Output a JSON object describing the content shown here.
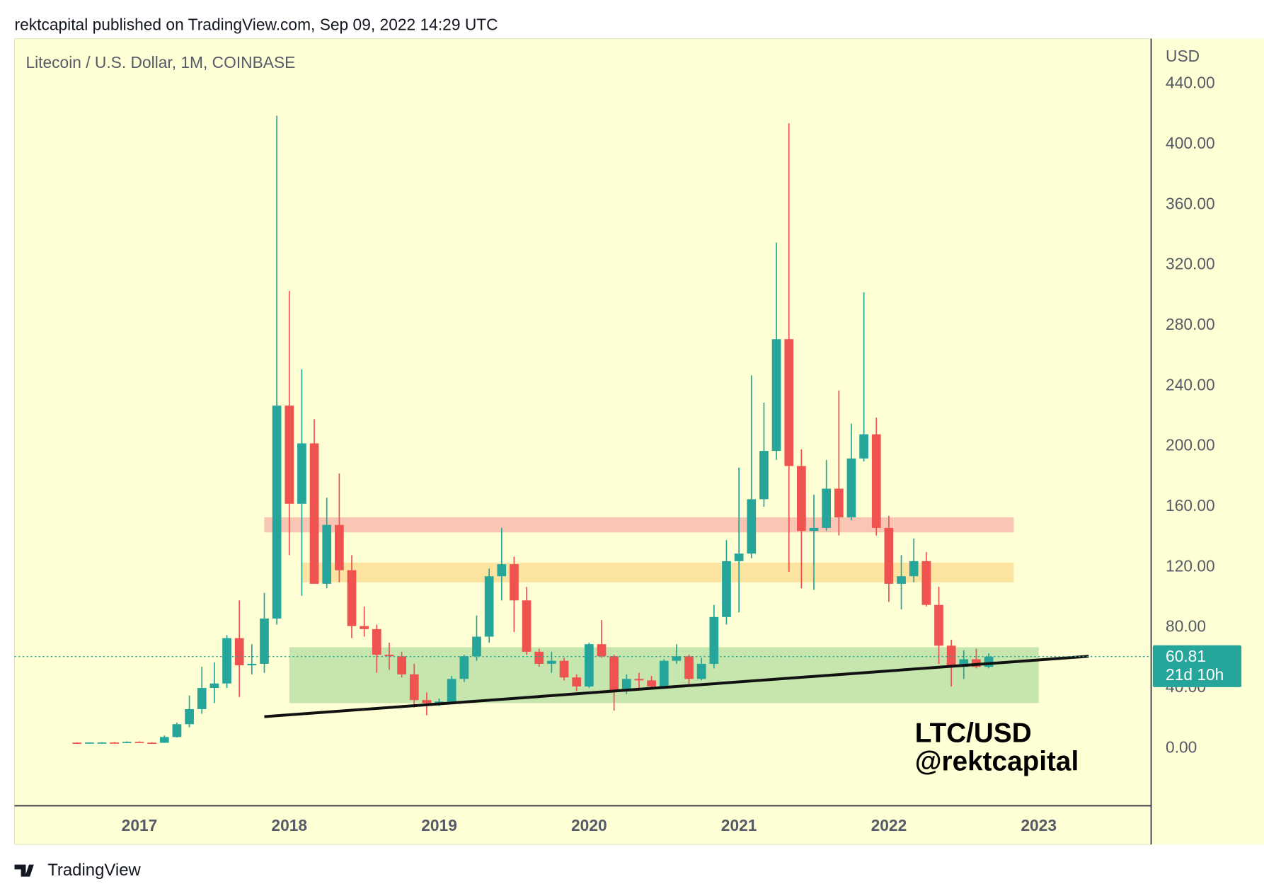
{
  "header": "rektcapital published on TradingView.com, Sep 09, 2022 14:29 UTC",
  "footer": "TradingView",
  "chart_data": {
    "type": "candlestick",
    "title": "Litecoin / U.S. Dollar, 1M, COINBASE",
    "y_axis_label": "USD",
    "countdown": "21d 10h",
    "up_color": "#26a69a",
    "down_color": "#ef5350",
    "grid": false,
    "x": [
      "2016-08",
      "2016-09",
      "2016-10",
      "2016-11",
      "2016-12",
      "2017-01",
      "2017-02",
      "2017-03",
      "2017-04",
      "2017-05",
      "2017-06",
      "2017-07",
      "2017-08",
      "2017-09",
      "2017-10",
      "2017-11",
      "2017-12",
      "2018-01",
      "2018-02",
      "2018-03",
      "2018-04",
      "2018-05",
      "2018-06",
      "2018-07",
      "2018-08",
      "2018-09",
      "2018-10",
      "2018-11",
      "2018-12",
      "2019-01",
      "2019-02",
      "2019-03",
      "2019-04",
      "2019-05",
      "2019-06",
      "2019-07",
      "2019-08",
      "2019-09",
      "2019-10",
      "2019-11",
      "2019-12",
      "2020-01",
      "2020-02",
      "2020-03",
      "2020-04",
      "2020-05",
      "2020-06",
      "2020-07",
      "2020-08",
      "2020-09",
      "2020-10",
      "2020-11",
      "2020-12",
      "2021-01",
      "2021-02",
      "2021-03",
      "2021-04",
      "2021-05",
      "2021-06",
      "2021-07",
      "2021-08",
      "2021-09",
      "2021-10",
      "2021-11",
      "2021-12",
      "2022-01",
      "2022-02",
      "2022-03",
      "2022-04",
      "2022-05",
      "2022-06",
      "2022-07",
      "2022-08",
      "2022-09"
    ],
    "open": [
      3.8,
      3.7,
      3.9,
      3.9,
      3.6,
      4.4,
      3.8,
      3.7,
      7.5,
      16,
      26,
      40,
      43,
      73,
      55,
      56,
      86,
      227,
      162,
      202,
      109,
      148,
      118,
      81,
      79,
      62,
      61,
      49,
      32,
      30,
      31,
      46,
      61,
      74,
      114,
      122,
      98,
      64,
      56,
      58,
      47,
      41,
      69,
      61,
      38,
      46,
      45,
      41,
      58,
      61,
      46,
      56,
      87,
      124,
      129,
      165,
      197,
      271,
      187,
      144,
      146,
      172,
      153,
      192,
      208,
      146,
      109,
      114,
      124,
      95,
      68,
      54,
      59,
      54
    ],
    "high": [
      4.0,
      4.0,
      4.1,
      4.2,
      4.6,
      4.6,
      4.1,
      8.5,
      17,
      35,
      54,
      57,
      75,
      98,
      69,
      103,
      419,
      303,
      251,
      218,
      166,
      182,
      128,
      94,
      82,
      70,
      64,
      56,
      37,
      33,
      48,
      62,
      88,
      119,
      146,
      127,
      107,
      66,
      64,
      60,
      49,
      70,
      85,
      62,
      49,
      50,
      48,
      59,
      69,
      62,
      60,
      95,
      138,
      186,
      247,
      229,
      335,
      414,
      198,
      168,
      191,
      237,
      215,
      302,
      219,
      154,
      128,
      139,
      130,
      107,
      72,
      65,
      66,
      63
    ],
    "low": [
      3.5,
      3.6,
      3.7,
      3.5,
      3.4,
      3.6,
      3.6,
      3.6,
      7.2,
      14,
      23,
      30,
      40,
      34,
      49,
      50,
      82,
      128,
      101,
      110,
      106,
      110,
      73,
      74,
      50,
      52,
      47,
      27,
      22,
      28,
      30,
      44,
      58,
      70,
      98,
      77,
      62,
      54,
      50,
      45,
      38,
      40,
      60,
      25,
      36,
      40,
      39,
      40,
      56,
      42,
      45,
      53,
      82,
      90,
      126,
      160,
      191,
      117,
      106,
      105,
      144,
      141,
      151,
      190,
      141,
      97,
      92,
      110,
      94,
      56,
      41,
      46,
      53,
      53
    ],
    "close": [
      3.7,
      3.9,
      3.9,
      3.6,
      4.4,
      3.8,
      3.7,
      7.5,
      16,
      26,
      40,
      43,
      73,
      55,
      56,
      86,
      227,
      162,
      202,
      109,
      148,
      118,
      81,
      79,
      62,
      61,
      49,
      32,
      30,
      31,
      46,
      61,
      74,
      114,
      122,
      98,
      64,
      56,
      58,
      47,
      41,
      69,
      61,
      38,
      46,
      45,
      41,
      58,
      61,
      46,
      56,
      87,
      124,
      129,
      165,
      197,
      271,
      187,
      144,
      146,
      172,
      153,
      192,
      208,
      146,
      109,
      114,
      124,
      95,
      68,
      54,
      59,
      54,
      60.81
    ],
    "xlim": [
      "2016-03",
      "2023-10"
    ],
    "xticks": [
      {
        "value": "2017-01",
        "label": "2017"
      },
      {
        "value": "2018-01",
        "label": "2018"
      },
      {
        "value": "2019-01",
        "label": "2019"
      },
      {
        "value": "2020-01",
        "label": "2020"
      },
      {
        "value": "2021-01",
        "label": "2021"
      },
      {
        "value": "2022-01",
        "label": "2022"
      },
      {
        "value": "2023-01",
        "label": "2023"
      }
    ],
    "ylim": [
      -38,
      470
    ],
    "yticks": [
      {
        "value": 0,
        "label": "0.00"
      },
      {
        "value": 40,
        "label": "40.00"
      },
      {
        "value": 80,
        "label": "80.00"
      },
      {
        "value": 120,
        "label": "120.00"
      },
      {
        "value": 160,
        "label": "160.00"
      },
      {
        "value": 200,
        "label": "200.00"
      },
      {
        "value": 240,
        "label": "240.00"
      },
      {
        "value": 280,
        "label": "280.00"
      },
      {
        "value": 320,
        "label": "320.00"
      },
      {
        "value": 360,
        "label": "360.00"
      },
      {
        "value": 400,
        "label": "400.00"
      },
      {
        "value": 440,
        "label": "440.00"
      }
    ],
    "zones": [
      {
        "from": 143,
        "to": 153,
        "start": "2017-11",
        "end": "2022-11",
        "color": "#f9c6b3"
      },
      {
        "from": 110,
        "to": 123,
        "start": "2018-02",
        "end": "2022-11",
        "color": "#fde3a0"
      },
      {
        "from": 30,
        "to": 67,
        "start": "2018-01",
        "end": "2023-01",
        "color": "#c6e6ae"
      }
    ],
    "trendline": {
      "x": [
        "2017-11",
        "2023-05"
      ],
      "values": [
        21,
        61
      ],
      "color": "#111111"
    },
    "annotations": [
      "LTC/USD",
      "@rektcapital"
    ]
  }
}
